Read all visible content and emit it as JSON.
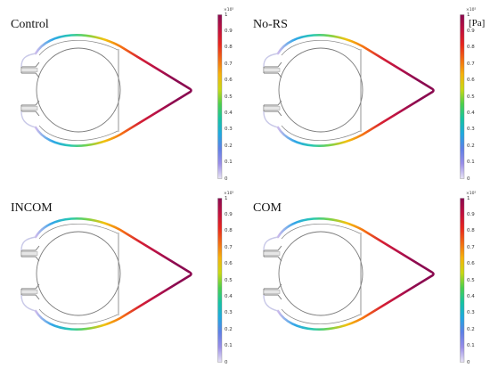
{
  "panels": [
    {
      "title": "Control",
      "multiplier": "×10⁵",
      "unit": ""
    },
    {
      "title": "No-RS",
      "multiplier": "×10⁵",
      "unit": "[Pa]"
    },
    {
      "title": "INCOM",
      "multiplier": "×10⁵",
      "unit": ""
    },
    {
      "title": "COM",
      "multiplier": "×10⁵",
      "unit": ""
    }
  ],
  "colorbar": {
    "ticks": [
      "1",
      "0.9",
      "0.8",
      "0.7",
      "0.6",
      "0.5",
      "0.4",
      "0.3",
      "0.2",
      "0.1",
      "0"
    ],
    "colors": [
      "#8b0a50",
      "#c0103e",
      "#e8251d",
      "#f26b13",
      "#f5b20c",
      "#c8d814",
      "#4ccf4c",
      "#16c3a2",
      "#1fa8e0",
      "#5f7fe6",
      "#9a8ee8",
      "#e8e4f4"
    ]
  }
}
